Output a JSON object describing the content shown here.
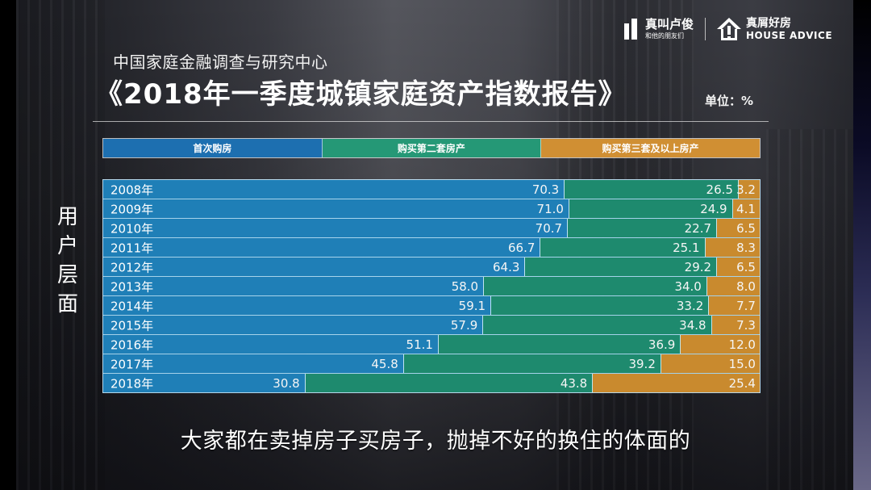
{
  "brand": {
    "logo1": {
      "name": "真叫卢俊",
      "tagline": "和他的朋友们"
    },
    "logo2": {
      "name": "真屑好房",
      "english": "HOUSE ADVICE"
    }
  },
  "header": {
    "subtitle": "中国家庭金融调查与研究中心",
    "title": "《2018年一季度城镇家庭资产指数报告》",
    "unit": "单位：%"
  },
  "side_label": [
    "用",
    "户",
    "层",
    "面"
  ],
  "colors": {
    "first_home": "#1f7fb7",
    "second_home": "#1e8a6e",
    "third_plus": "#c98a2e",
    "legend_first": "#1d6fb0",
    "legend_second": "#259876",
    "legend_third": "#d08f33"
  },
  "caption": "大家都在卖掉房子买房子，抛掉不好的换住的体面的",
  "chart_data": {
    "type": "bar",
    "orientation": "horizontal",
    "stacked": true,
    "title": "《2018年一季度城镇家庭资产指数报告》",
    "subtitle": "中国家庭金融调查与研究中心",
    "xlabel": "",
    "ylabel": "用户层面",
    "unit": "%",
    "xlim": [
      0,
      100
    ],
    "grid": false,
    "legend_position": "top",
    "categories": [
      "2008年",
      "2009年",
      "2010年",
      "2011年",
      "2012年",
      "2013年",
      "2014年",
      "2015年",
      "2016年",
      "2017年",
      "2018年"
    ],
    "series": [
      {
        "name": "首次购房",
        "values": [
          70.3,
          71.0,
          70.7,
          66.7,
          64.3,
          58.0,
          59.1,
          57.9,
          51.1,
          45.8,
          30.8
        ]
      },
      {
        "name": "购买第二套房产",
        "values": [
          26.5,
          24.9,
          22.7,
          25.1,
          29.2,
          34.0,
          33.2,
          34.8,
          36.9,
          39.2,
          43.8
        ]
      },
      {
        "name": "购买第三套及以上房产",
        "values": [
          3.2,
          4.1,
          6.5,
          8.3,
          6.5,
          8.0,
          7.7,
          7.3,
          12.0,
          15.0,
          25.4
        ]
      }
    ],
    "value_labels": [
      [
        "70.3",
        "26.5",
        "3.2"
      ],
      [
        "71.0",
        "24.9",
        "4.1"
      ],
      [
        "70.7",
        "22.7",
        "6.5"
      ],
      [
        "66.7",
        "25.1",
        "8.3"
      ],
      [
        "64.3",
        "29.2",
        "6.5"
      ],
      [
        "58.0",
        "34.0",
        "8.0"
      ],
      [
        "59.1",
        "33.2",
        "7.7"
      ],
      [
        "57.9",
        "34.8",
        "7.3"
      ],
      [
        "51.1",
        "36.9",
        "12.0"
      ],
      [
        "45.8",
        "39.2",
        "15.0"
      ],
      [
        "30.8",
        "43.8",
        "25.4"
      ]
    ]
  }
}
